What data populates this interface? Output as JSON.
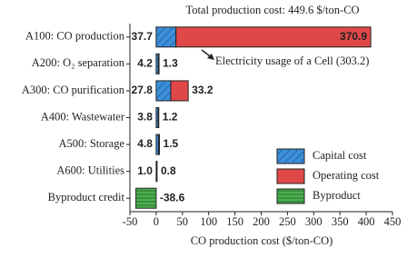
{
  "chart_data": {
    "type": "bar",
    "orientation": "horizontal",
    "stacked": true,
    "title": "Total production cost: 449.6 $/ton-CO",
    "xlabel": "CO production cost ($/ton-CO)",
    "categories": [
      "A100: CO production",
      "A200: O₂ separation",
      "A300: CO purification",
      "A400: Wastewater",
      "A500: Storage",
      "A600: Utilities",
      "Byproduct credit"
    ],
    "series": [
      {
        "name": "Capital cost",
        "color": "#3b8fd9",
        "label_color": "#3b8fd9",
        "hatch": "diagonal",
        "values": [
          37.7,
          4.2,
          27.8,
          3.8,
          4.8,
          1.0,
          null
        ],
        "value_labels": [
          "37.7",
          "4.2",
          "27.8",
          "3.8",
          "4.8",
          "1.0",
          null
        ]
      },
      {
        "name": "Operating cost",
        "color": "#e04848",
        "label_color": "#e05a50",
        "hatch": "none",
        "values": [
          370.9,
          1.3,
          33.2,
          1.2,
          1.5,
          0.8,
          null
        ]
      },
      {
        "name": "Byproduct",
        "color": "#4cb050",
        "label_color": "#4cb050",
        "hatch": "horizontal",
        "values": [
          null,
          null,
          null,
          null,
          null,
          null,
          -38.6
        ]
      }
    ],
    "annotation": {
      "text": "Electricity usage of a Cell (303.2)",
      "value": 303.2,
      "color": "#f5ee80",
      "category": 0
    },
    "xlim": [
      -50,
      450
    ],
    "xticks": [
      -50,
      0,
      50,
      100,
      150,
      200,
      250,
      300,
      350,
      400,
      450
    ],
    "legend": "lower right"
  }
}
